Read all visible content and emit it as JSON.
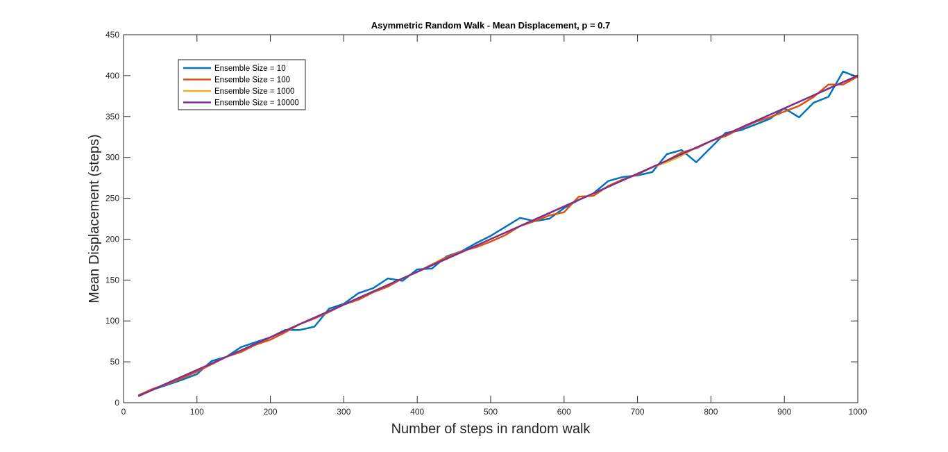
{
  "chart_data": {
    "type": "line",
    "title": "Asymmetric Random Walk - Mean Displacement,  p = 0.7",
    "xlabel": "Number of steps in random walk",
    "ylabel": "Mean Displacement (steps)",
    "xlim": [
      0,
      1000
    ],
    "ylim": [
      0,
      450
    ],
    "xticks": [
      0,
      100,
      200,
      300,
      400,
      500,
      600,
      700,
      800,
      900,
      1000
    ],
    "yticks": [
      0,
      50,
      100,
      150,
      200,
      250,
      300,
      350,
      400,
      450
    ],
    "grid": false,
    "legend_position": "top-left",
    "x": [
      20,
      40,
      60,
      80,
      100,
      120,
      140,
      160,
      180,
      200,
      220,
      240,
      260,
      280,
      300,
      320,
      340,
      360,
      380,
      400,
      420,
      440,
      460,
      480,
      500,
      520,
      540,
      560,
      580,
      600,
      620,
      640,
      660,
      680,
      700,
      720,
      740,
      760,
      780,
      800,
      820,
      840,
      860,
      880,
      900,
      920,
      940,
      960,
      980,
      1000
    ],
    "series": [
      {
        "name": "Ensemble Size = 10",
        "color": "#0072BD",
        "values": [
          8,
          16,
          22,
          28,
          35,
          51,
          56,
          68,
          74,
          80,
          89,
          89,
          93,
          115,
          121,
          134,
          140,
          152,
          149,
          163,
          164,
          179,
          185,
          195,
          204,
          215,
          226,
          222,
          225,
          238,
          248,
          256,
          271,
          276,
          278,
          282,
          304,
          309,
          294,
          312,
          330,
          333,
          340,
          347,
          360,
          349,
          367,
          374,
          405,
          398
        ]
      },
      {
        "name": "Ensemble Size = 100",
        "color": "#D95319",
        "values": [
          9,
          17,
          23,
          30,
          38,
          47,
          56,
          62,
          71,
          77,
          86,
          96,
          103,
          111,
          120,
          126,
          135,
          142,
          152,
          160,
          169,
          178,
          185,
          190,
          197,
          205,
          216,
          222,
          229,
          233,
          252,
          253,
          265,
          273,
          279,
          288,
          296,
          306,
          311,
          320,
          326,
          335,
          343,
          349,
          356,
          363,
          374,
          389,
          389,
          399
        ]
      },
      {
        "name": "Ensemble Size = 1000",
        "color": "#EDB120",
        "values": [
          8,
          16,
          24,
          32,
          40,
          48,
          56,
          64,
          72,
          80,
          88,
          96,
          104,
          112,
          120,
          128,
          136,
          144,
          152,
          160,
          168,
          176,
          184,
          192,
          200,
          208,
          216,
          224,
          232,
          240,
          248,
          256,
          264,
          272,
          280,
          288,
          294,
          302,
          312,
          320,
          328,
          336,
          344,
          352,
          360,
          368,
          376,
          384,
          392,
          400
        ]
      },
      {
        "name": "Ensemble Size = 10000",
        "color": "#7E2F8E",
        "values": [
          8,
          16,
          24,
          32,
          40,
          48,
          56,
          64,
          72,
          80,
          88,
          96,
          104,
          112,
          120,
          128,
          136,
          144,
          152,
          160,
          168,
          176,
          184,
          192,
          200,
          208,
          216,
          224,
          232,
          240,
          248,
          256,
          264,
          272,
          280,
          288,
          296,
          304,
          312,
          320,
          328,
          336,
          344,
          352,
          360,
          368,
          376,
          384,
          392,
          400
        ]
      }
    ]
  }
}
